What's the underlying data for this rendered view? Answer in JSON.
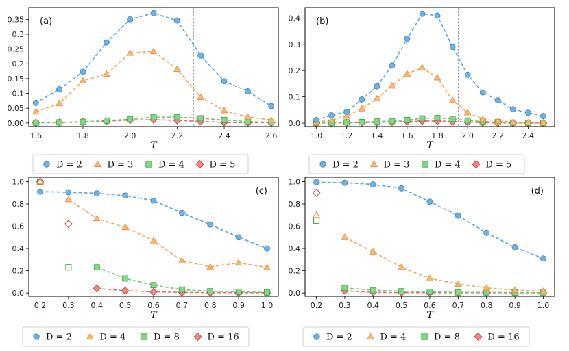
{
  "chart_data": [
    {
      "type": "line",
      "panel": "(a)",
      "xlabel": "T",
      "xlim": [
        1.57,
        2.63
      ],
      "ylim": [
        -0.012,
        0.39
      ],
      "xticks": [
        1.6,
        1.8,
        2.0,
        2.2,
        2.4,
        2.6
      ],
      "xtick_labels": [
        "1.6",
        "1.8",
        "2.0",
        "2.2",
        "2.4",
        "2.6"
      ],
      "yticks": [
        0,
        0.05,
        0.1,
        0.15,
        0.2,
        0.25,
        0.3,
        0.35
      ],
      "ytick_labels": [
        "0.00",
        "0.05",
        "0.1",
        "0.15",
        "0.2",
        "0.25",
        "0.3",
        "0.35"
      ],
      "vline": 2.269,
      "x": [
        1.6,
        1.7,
        1.8,
        1.9,
        2.0,
        2.1,
        2.2,
        2.3,
        2.4,
        2.5,
        2.6
      ],
      "series": [
        {
          "name": "D = 2",
          "marker": "circle",
          "values": [
            0.068,
            0.114,
            0.173,
            0.272,
            0.35,
            0.371,
            0.346,
            0.228,
            0.141,
            0.107,
            0.057
          ]
        },
        {
          "name": "D = 3",
          "marker": "triangle",
          "values": [
            0.038,
            0.066,
            0.143,
            0.165,
            0.236,
            0.242,
            0.182,
            0.087,
            0.042,
            0.021,
            0.01
          ]
        },
        {
          "name": "D = 4",
          "marker": "square",
          "values": [
            0.001,
            0.002,
            0.004,
            0.008,
            0.013,
            0.02,
            0.02,
            0.016,
            0.01,
            0.005,
            0.002
          ]
        },
        {
          "name": "D = 5",
          "marker": "diamond",
          "values": [
            0.001,
            0.002,
            0.003,
            0.006,
            0.01,
            0.011,
            0.009,
            0.005,
            0.002,
            0.001,
            0.001
          ]
        }
      ],
      "legend": [
        "D = 2",
        "D = 3",
        "D = 4",
        "D = 5"
      ]
    },
    {
      "type": "line",
      "panel": "(b)",
      "xlabel": "T",
      "xlim": [
        0.925,
        2.575
      ],
      "ylim": [
        -0.013,
        0.44
      ],
      "xticks": [
        1.0,
        1.2,
        1.4,
        1.6,
        1.8,
        2.0,
        2.2,
        2.4
      ],
      "xtick_labels": [
        "1.0",
        "1.2",
        "1.4",
        "1.6",
        "1.8",
        "2.0",
        "2.2",
        "2.4"
      ],
      "yticks": [
        0,
        0.1,
        0.2,
        0.3,
        0.4
      ],
      "ytick_labels": [
        "0.0",
        "0.1",
        "0.2",
        "0.3",
        "0.4"
      ],
      "vline": 1.94,
      "x": [
        1.0,
        1.1,
        1.2,
        1.3,
        1.4,
        1.5,
        1.6,
        1.7,
        1.8,
        1.9,
        2.0,
        2.1,
        2.2,
        2.3,
        2.4,
        2.5
      ],
      "series": [
        {
          "name": "D = 2",
          "marker": "circle",
          "values": [
            0.012,
            0.03,
            0.043,
            0.09,
            0.14,
            0.219,
            0.321,
            0.416,
            0.409,
            0.29,
            0.184,
            0.117,
            0.087,
            0.053,
            0.04,
            0.027
          ]
        },
        {
          "name": "D = 3",
          "marker": "triangle",
          "values": [
            0.004,
            0.012,
            0.027,
            0.055,
            0.093,
            0.142,
            0.188,
            0.211,
            0.173,
            0.087,
            0.04,
            0.015,
            0.008,
            0.004,
            0.002,
            0.001
          ]
        },
        {
          "name": "D = 4",
          "marker": "square",
          "values": [
            0.001,
            0.002,
            0.003,
            0.004,
            0.006,
            0.008,
            0.012,
            0.018,
            0.02,
            0.016,
            0.01,
            0.006,
            0.004,
            0.002,
            0.001,
            0.001
          ]
        },
        {
          "name": "D = 5",
          "marker": "diamond",
          "values": [
            0.0,
            0.001,
            0.001,
            0.002,
            0.003,
            0.004,
            0.006,
            0.008,
            0.008,
            0.006,
            0.004,
            0.002,
            0.001,
            0.001,
            0.0,
            0.0
          ]
        }
      ],
      "legend": [
        "D = 2",
        "D = 3",
        "D = 4",
        "D = 5"
      ]
    },
    {
      "type": "line",
      "panel": "(c)",
      "xlabel": "T",
      "xlim": [
        0.16,
        1.04
      ],
      "ylim": [
        -0.03,
        1.04
      ],
      "xticks": [
        0.2,
        0.3,
        0.4,
        0.5,
        0.6,
        0.7,
        0.8,
        0.9,
        1.0
      ],
      "xtick_labels": [
        "0.2",
        "0.3",
        "0.4",
        "0.5",
        "0.6",
        "0.7",
        "0.8",
        "0.9",
        "1.0"
      ],
      "yticks": [
        0,
        0.2,
        0.4,
        0.6,
        0.8,
        1.0
      ],
      "ytick_labels": [
        "0.0",
        "0.2",
        "0.4",
        "0.6",
        "0.8",
        "1.0"
      ],
      "series": [
        {
          "name": "D = 2",
          "marker": "circle",
          "x": [
            0.2,
            0.3,
            0.4,
            0.5,
            0.6,
            0.7,
            0.8,
            0.9,
            1.0
          ],
          "values": [
            0.91,
            0.905,
            0.895,
            0.875,
            0.83,
            0.72,
            0.615,
            0.5,
            0.4
          ]
        },
        {
          "name": "D = 4",
          "marker": "triangle",
          "x": [
            0.3,
            0.4,
            0.5,
            0.6,
            0.7,
            0.8,
            0.9,
            1.0
          ],
          "values": [
            0.84,
            0.67,
            0.59,
            0.47,
            0.29,
            0.235,
            0.27,
            0.23
          ],
          "open": {
            "x": [
              0.2
            ],
            "values": [
              1.0
            ]
          }
        },
        {
          "name": "D = 8",
          "marker": "square",
          "x": [
            0.4,
            0.5,
            0.6,
            0.7,
            0.8,
            0.9,
            1.0
          ],
          "values": [
            0.23,
            0.13,
            0.07,
            0.03,
            0.015,
            0.01,
            0.005
          ],
          "open": {
            "x": [
              0.2,
              0.3
            ],
            "values": [
              1.0,
              0.23
            ]
          }
        },
        {
          "name": "D = 16",
          "marker": "diamond",
          "x": [
            0.4,
            0.5,
            0.6,
            0.7,
            0.8,
            0.9,
            1.0
          ],
          "values": [
            0.04,
            0.02,
            0.01,
            0.005,
            0.003,
            0.002,
            0.002
          ],
          "open": {
            "x": [
              0.2,
              0.3
            ],
            "values": [
              1.0,
              0.62
            ]
          }
        }
      ],
      "legend": [
        "D = 2",
        "D = 4",
        "D = 8",
        "D = 16"
      ]
    },
    {
      "type": "line",
      "panel": "(d)",
      "xlabel": "T",
      "xlim": [
        0.16,
        1.04
      ],
      "ylim": [
        -0.03,
        1.04
      ],
      "xticks": [
        0.2,
        0.3,
        0.4,
        0.5,
        0.6,
        0.7,
        0.8,
        0.9,
        1.0
      ],
      "xtick_labels": [
        "0.2",
        "0.3",
        "0.4",
        "0.5",
        "0.6",
        "0.7",
        "0.8",
        "0.9",
        "1.0"
      ],
      "yticks": [
        0,
        0.2,
        0.4,
        0.6,
        0.8,
        1.0
      ],
      "ytick_labels": [
        "0.0",
        "0.2",
        "0.4",
        "0.6",
        "0.8",
        "1.0"
      ],
      "series": [
        {
          "name": "D = 2",
          "marker": "circle",
          "x": [
            0.2,
            0.3,
            0.4,
            0.5,
            0.6,
            0.7,
            0.8,
            0.9,
            1.0
          ],
          "values": [
            0.995,
            0.99,
            0.975,
            0.94,
            0.82,
            0.695,
            0.54,
            0.41,
            0.31
          ]
        },
        {
          "name": "D = 4",
          "marker": "triangle",
          "x": [
            0.3,
            0.4,
            0.5,
            0.6,
            0.7,
            0.8,
            0.9,
            1.0
          ],
          "values": [
            0.5,
            0.37,
            0.23,
            0.13,
            0.08,
            0.045,
            0.025,
            0.015
          ],
          "open": {
            "x": [
              0.2
            ],
            "values": [
              0.7
            ]
          }
        },
        {
          "name": "D = 8",
          "marker": "square",
          "x": [
            0.3,
            0.4,
            0.5,
            0.6,
            0.7,
            0.8,
            0.9,
            1.0
          ],
          "values": [
            0.045,
            0.025,
            0.015,
            0.01,
            0.005,
            0.005,
            0.003,
            0.002
          ],
          "open": {
            "x": [
              0.2
            ],
            "values": [
              0.65
            ]
          }
        },
        {
          "name": "D = 16",
          "marker": "diamond",
          "x": [
            0.3,
            0.4,
            0.5,
            0.6,
            0.7,
            0.8,
            0.9,
            1.0
          ],
          "values": [
            0.02,
            0.005,
            0.003,
            0.002,
            0.002,
            0.002,
            0.001,
            0.001
          ],
          "open": {
            "x": [
              0.2
            ],
            "values": [
              0.9
            ]
          }
        }
      ],
      "legend": [
        "D = 2",
        "D = 4",
        "D = 8",
        "D = 16"
      ]
    }
  ],
  "colors": {
    "circle": {
      "fill": "#6fb2e3",
      "stroke": "#3d86c6",
      "line": "#5aa6de"
    },
    "triangle": {
      "fill": "#f8b877",
      "stroke": "#e8913e",
      "line": "#f5a65c"
    },
    "square": {
      "fill": "#86d68a",
      "stroke": "#43a847",
      "line": "#6cc970"
    },
    "diamond": {
      "fill": "#ef8585",
      "stroke": "#cc4343",
      "line": "#e46d6d"
    },
    "vline": "#555555"
  }
}
